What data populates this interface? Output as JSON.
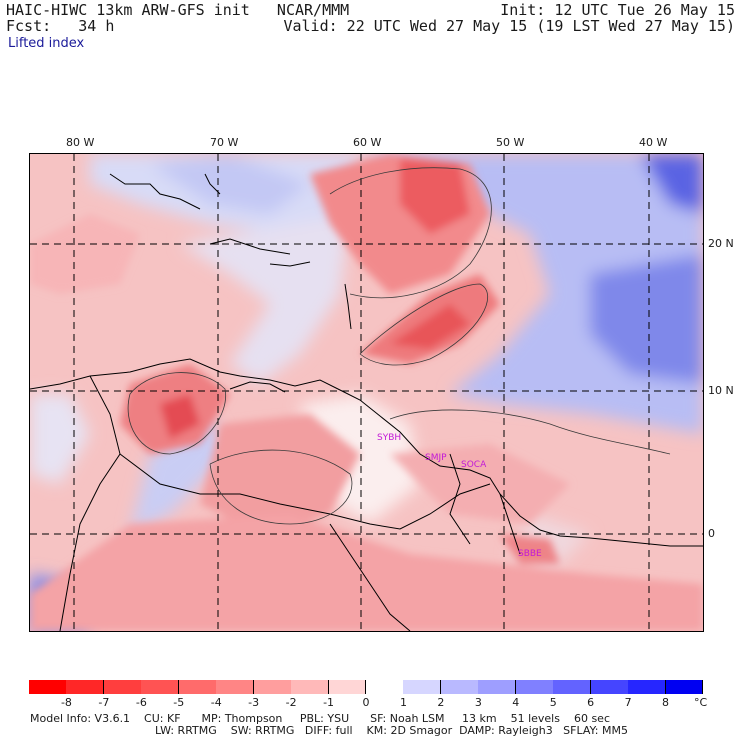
{
  "header": {
    "left1": "HAIC-HIWC 13km ARW-GFS init   NCAR/MMM",
    "left2": "Fcst:   34 h",
    "right1": "Init: 12 UTC Tue 26 May 15",
    "right2": "Valid: 22 UTC Wed 27 May 15 (19 LST Wed 27 May 15)",
    "field": "Lifted index"
  },
  "map": {
    "lon_labels": [
      "80 W",
      "70 W",
      "60 W",
      "50 W",
      "40 W"
    ],
    "lat_labels": [
      "20 N",
      "10 N",
      "0"
    ],
    "stations": [
      "SYBH",
      "SMJP",
      "SOCA",
      "SBBE"
    ],
    "colors": {
      "unstable": "#e8464f",
      "neutral": "#ffffff",
      "stable": "#4a55e0"
    }
  },
  "colorbar": {
    "ticks": [
      "-8",
      "-7",
      "-6",
      "-5",
      "-4",
      "-3",
      "-2",
      "-1",
      "0",
      "1",
      "2",
      "3",
      "4",
      "5",
      "6",
      "7",
      "8"
    ],
    "unit": "°C",
    "colors": [
      "#ff0000",
      "#ff2727",
      "#ff3e3e",
      "#ff5353",
      "#ff6b6b",
      "#ff8585",
      "#ff9e9e",
      "#ffb9b9",
      "#ffd6d6",
      "#ffffff",
      "#d6d6ff",
      "#b9b9ff",
      "#9e9eff",
      "#8080ff",
      "#6363ff",
      "#4545ff",
      "#2626ff",
      "#0000f2"
    ]
  },
  "footer": {
    "line1": "Model Info: V3.6.1    CU: KF      MP: Thompson     PBL: YSU      SF: Noah LSM     13 km    51 levels    60 sec",
    "line2": "LW: RRTMG    SW: RRTMG   DIFF: full    KM: 2D Smagor  DAMP: Rayleigh3   SFLAY: MM5"
  }
}
